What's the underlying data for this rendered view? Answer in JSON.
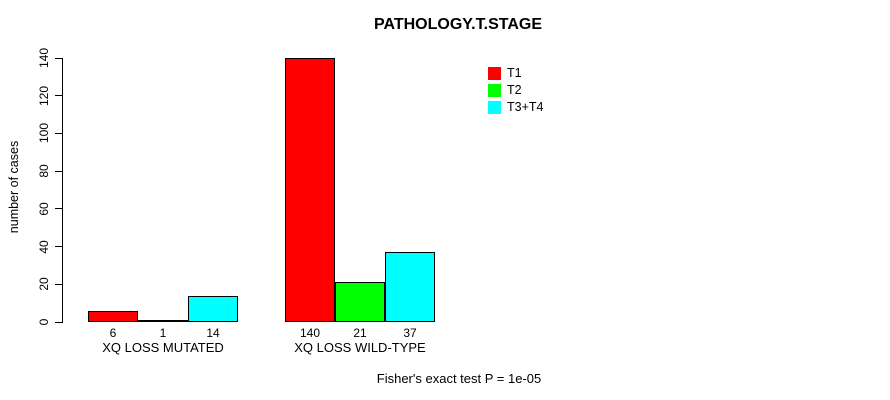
{
  "chart_data": {
    "type": "bar",
    "title": "PATHOLOGY.T.STAGE",
    "ylabel": "number of cases",
    "xlabel": "",
    "ylim": [
      0,
      140
    ],
    "yticks": [
      0,
      20,
      40,
      60,
      80,
      100,
      120,
      140
    ],
    "categories": [
      "XQ LOSS MUTATED",
      "XQ LOSS WILD-TYPE"
    ],
    "series": [
      {
        "name": "T1",
        "color": "#FF0000",
        "values": [
          6,
          140
        ]
      },
      {
        "name": "T2",
        "color": "#00FF00",
        "values": [
          1,
          21
        ]
      },
      {
        "name": "T3+T4",
        "color": "#00FFFF",
        "values": [
          14,
          37
        ]
      }
    ],
    "grid": false,
    "legend_position": "top-right",
    "annotation": "Fisher's exact test P = 1e-05"
  },
  "colors": {
    "background": "#FFFFFF",
    "bar_border": "#000000",
    "text": "#000000"
  }
}
